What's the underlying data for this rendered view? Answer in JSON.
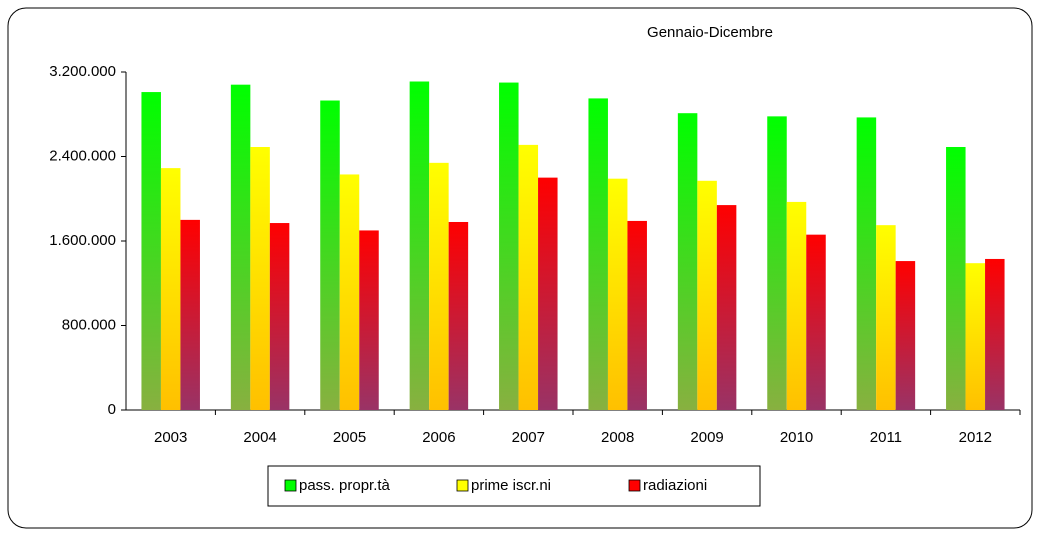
{
  "chart_data": {
    "type": "bar",
    "title": "Gennaio-Dicembre",
    "categories": [
      "2003",
      "2004",
      "2005",
      "2006",
      "2007",
      "2008",
      "2009",
      "2010",
      "2011",
      "2012"
    ],
    "series": [
      {
        "name": "pass. propr.tà",
        "color": "#00ff00",
        "color_end": "#88b040",
        "values": [
          3010000,
          3080000,
          2930000,
          3110000,
          3100000,
          2950000,
          2810000,
          2780000,
          2770000,
          2490000
        ]
      },
      {
        "name": "prime iscr.ni",
        "color": "#ffff00",
        "color_end": "#ffc000",
        "values": [
          2290000,
          2490000,
          2230000,
          2340000,
          2510000,
          2190000,
          2170000,
          1970000,
          1750000,
          1390000
        ]
      },
      {
        "name": "radiazioni",
        "color": "#ff0000",
        "color_end": "#993366",
        "values": [
          1800000,
          1770000,
          1700000,
          1780000,
          2200000,
          1790000,
          1940000,
          1660000,
          1410000,
          1430000
        ]
      }
    ],
    "ylim": [
      0,
      3200000
    ],
    "yticks": [
      0,
      {
        "value": 800000,
        "label": "800.000"
      },
      {
        "value": 1600000,
        "label": "1.600.000"
      },
      {
        "value": 2400000,
        "label": "2.400.000"
      },
      {
        "value": 3200000,
        "label": "3.200.000"
      }
    ],
    "grid": false,
    "legend": "bottom"
  }
}
